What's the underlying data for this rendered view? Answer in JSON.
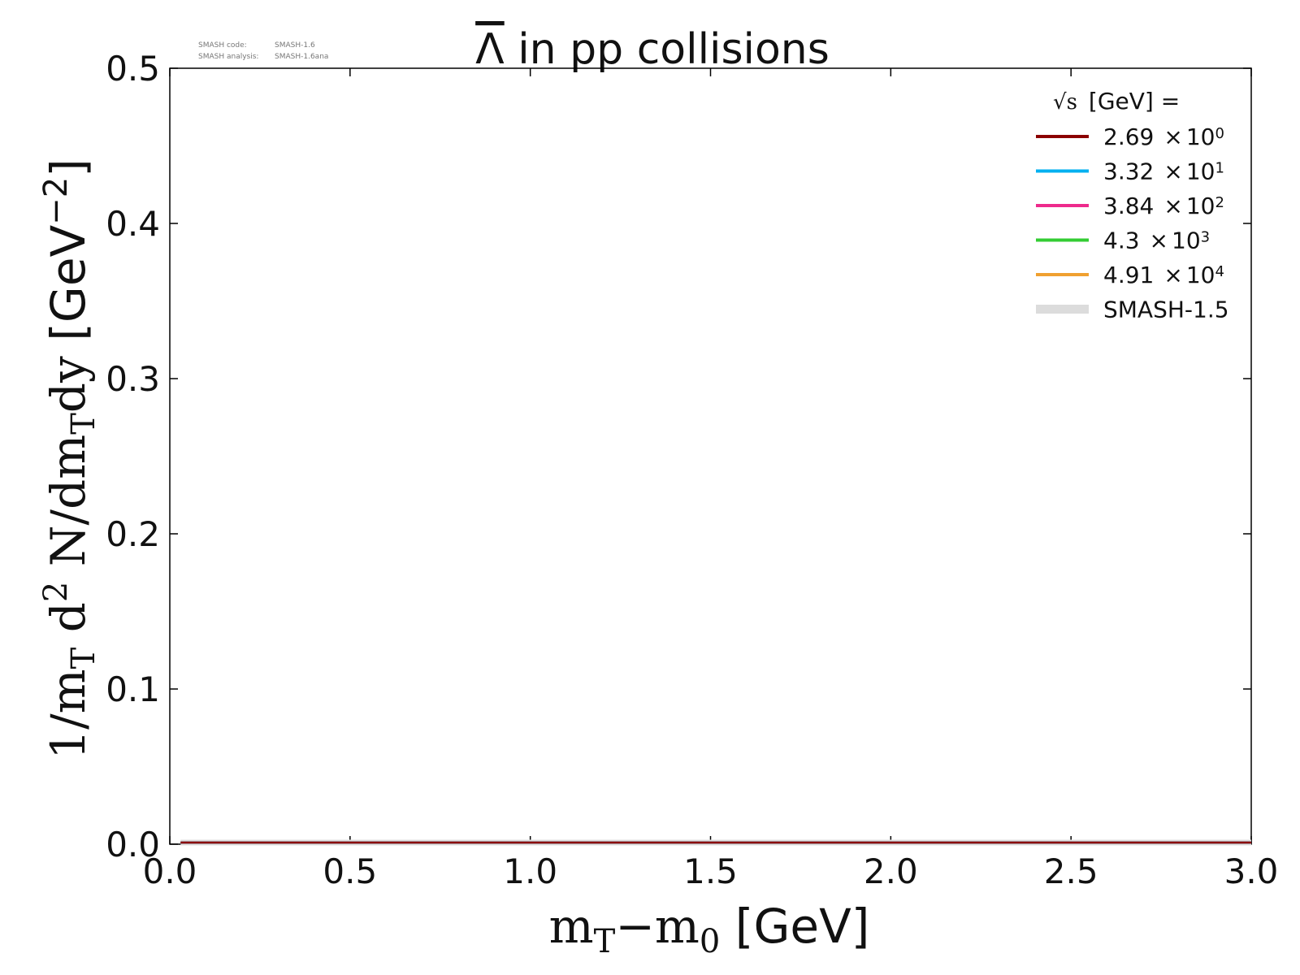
{
  "chart_data": {
    "type": "line",
    "title": "Λ in pp collisions",
    "xlabel": "m_T−m_0 [GeV]",
    "ylabel": "1/m_T d^2 N/dm_Tdy [GeV^−2]",
    "xlim": [
      0.0,
      3.0
    ],
    "ylim": [
      0.0,
      0.5
    ],
    "x_ticks": [
      "0.0",
      "0.5",
      "1.0",
      "1.5",
      "2.0",
      "2.5",
      "3.0"
    ],
    "y_ticks": [
      "0.0",
      "0.1",
      "0.2",
      "0.3",
      "0.4",
      "0.5"
    ],
    "grid": false,
    "legend_position": "top-right",
    "legend_title": "[GeV] =",
    "series": [
      {
        "name": "2.69 × 10^0",
        "mantissa": "2.69",
        "times": "×",
        "base": "10",
        "exp": "0",
        "color": "#8b0000",
        "x": [
          0.03,
          3.0
        ],
        "y": [
          0.0,
          0.0
        ]
      },
      {
        "name": "3.32 × 10^1",
        "mantissa": "3.32",
        "times": "×",
        "base": "10",
        "exp": "1",
        "color": "#00b0f0",
        "x": [
          0.03,
          3.0
        ],
        "y": [
          0.0,
          0.0
        ]
      },
      {
        "name": "3.84 × 10^2",
        "mantissa": "3.84",
        "times": "×",
        "base": "10",
        "exp": "2",
        "color": "#ee2a8c",
        "x": [
          0.03,
          3.0
        ],
        "y": [
          0.0,
          0.0
        ]
      },
      {
        "name": "4.3 × 10^3",
        "mantissa": "4.3",
        "times": "×",
        "base": "10",
        "exp": "3",
        "color": "#33cc33",
        "x": [
          0.03,
          3.0
        ],
        "y": [
          0.0,
          0.0
        ]
      },
      {
        "name": "4.91 × 10^4",
        "mantissa": "4.91",
        "times": "×",
        "base": "10",
        "exp": "4",
        "color": "#f0a030",
        "x": [
          0.03,
          3.0
        ],
        "y": [
          0.0,
          0.0
        ]
      },
      {
        "name": "SMASH-1.5",
        "color": "#dcdcdc",
        "x": [
          0.03,
          3.0
        ],
        "y": [
          0.0,
          0.0
        ]
      }
    ]
  },
  "version_info": {
    "code_label": "SMASH code:",
    "code_value": "SMASH-1.6",
    "analysis_label": "SMASH analysis:",
    "analysis_value": "SMASH-1.6ana"
  }
}
